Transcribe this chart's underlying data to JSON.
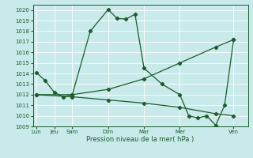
{
  "xlabel": "Pression niveau de la mer( hPa )",
  "background_color": "#c8eaea",
  "grid_color": "#ffffff",
  "line_color": "#1a5c2a",
  "ylim": [
    1009,
    1020.5
  ],
  "yticks": [
    1009,
    1010,
    1011,
    1012,
    1013,
    1014,
    1015,
    1016,
    1017,
    1018,
    1019,
    1020
  ],
  "x_labels": [
    "Lun",
    "Jeu",
    "Sam",
    "Dim",
    "Mar",
    "Mer",
    "Ven"
  ],
  "x_positions": [
    0,
    1,
    2,
    4,
    6,
    8,
    11
  ],
  "xlim": [
    -0.2,
    11.8
  ],
  "series1_x": [
    0,
    0.5,
    1,
    1.5,
    2,
    3,
    4,
    4.5,
    5,
    5.5,
    6,
    7,
    8,
    8.5,
    9,
    9.5,
    10,
    10.5,
    11
  ],
  "series1_y": [
    1014.1,
    1013.3,
    1012.2,
    1011.8,
    1012.0,
    1018.0,
    1020.05,
    1019.2,
    1019.15,
    1019.6,
    1014.5,
    1013.0,
    1012.0,
    1010.0,
    1009.8,
    1010.0,
    1009.1,
    1011.0,
    1017.2
  ],
  "series2_x": [
    0,
    2,
    4,
    6,
    8,
    10,
    11
  ],
  "series2_y": [
    1012.0,
    1011.8,
    1011.5,
    1011.2,
    1010.8,
    1010.2,
    1010.0
  ],
  "series3_x": [
    0,
    2,
    4,
    6,
    8,
    10,
    11
  ],
  "series3_y": [
    1012.0,
    1012.0,
    1012.5,
    1013.5,
    1015.0,
    1016.5,
    1017.2
  ]
}
